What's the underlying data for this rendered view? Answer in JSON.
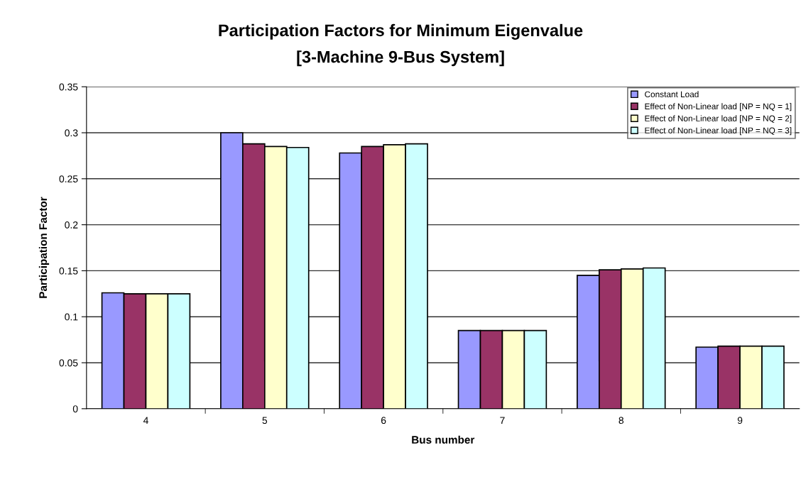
{
  "chart_data": {
    "type": "bar",
    "title": "Participation Factors for Minimum Eigenvalue",
    "subtitle": "[3-Machine 9-Bus System]",
    "xlabel": "Bus number",
    "ylabel": "Participation Factor",
    "categories": [
      "4",
      "5",
      "6",
      "7",
      "8",
      "9"
    ],
    "series": [
      {
        "name": "Constant Load",
        "color": "#9999ff",
        "values": [
          0.126,
          0.3,
          0.278,
          0.085,
          0.145,
          0.067
        ]
      },
      {
        "name": "Effect of Non-Linear load [NP = NQ = 1]",
        "color": "#993366",
        "values": [
          0.125,
          0.288,
          0.285,
          0.085,
          0.151,
          0.068
        ]
      },
      {
        "name": "Effect of Non-Linear load [NP = NQ = 2]",
        "color": "#ffffcc",
        "values": [
          0.125,
          0.285,
          0.287,
          0.085,
          0.152,
          0.068
        ]
      },
      {
        "name": "Effect of Non-Linear load [NP = NQ = 3]",
        "color": "#ccffff",
        "values": [
          0.125,
          0.284,
          0.288,
          0.085,
          0.153,
          0.068
        ]
      }
    ],
    "ylim": [
      0,
      0.35
    ],
    "yticks": [
      {
        "value": 0,
        "label": "0"
      },
      {
        "value": 0.05,
        "label": "0.05"
      },
      {
        "value": 0.1,
        "label": "0.1"
      },
      {
        "value": 0.15,
        "label": "0.15"
      },
      {
        "value": 0.2,
        "label": "0.2"
      },
      {
        "value": 0.25,
        "label": "0.25"
      },
      {
        "value": 0.3,
        "label": "0.3"
      },
      {
        "value": 0.35,
        "label": "0.35"
      }
    ],
    "grid": "y",
    "legend": "top right"
  }
}
